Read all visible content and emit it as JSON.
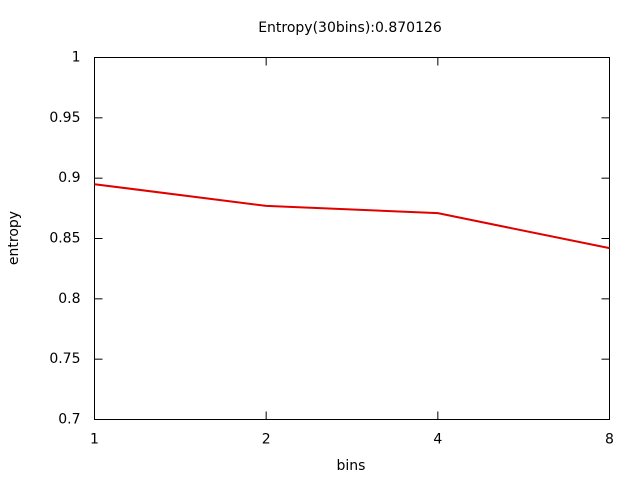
{
  "chart_data": {
    "type": "line",
    "title": "Entropy(30bins):0.870126",
    "xlabel": "bins",
    "ylabel": "entropy",
    "x": [
      1,
      2,
      4,
      8
    ],
    "series": [
      {
        "color": "#e00000",
        "values": [
          0.895,
          0.877,
          0.871,
          0.842
        ]
      }
    ],
    "xscale": "log",
    "xlim": [
      1,
      8
    ],
    "xticks": [
      1,
      2,
      4,
      8
    ],
    "ylim": [
      0.7,
      1
    ],
    "yticks": [
      0.7,
      0.75,
      0.8,
      0.85,
      0.9,
      0.95,
      1
    ],
    "grid": false
  }
}
